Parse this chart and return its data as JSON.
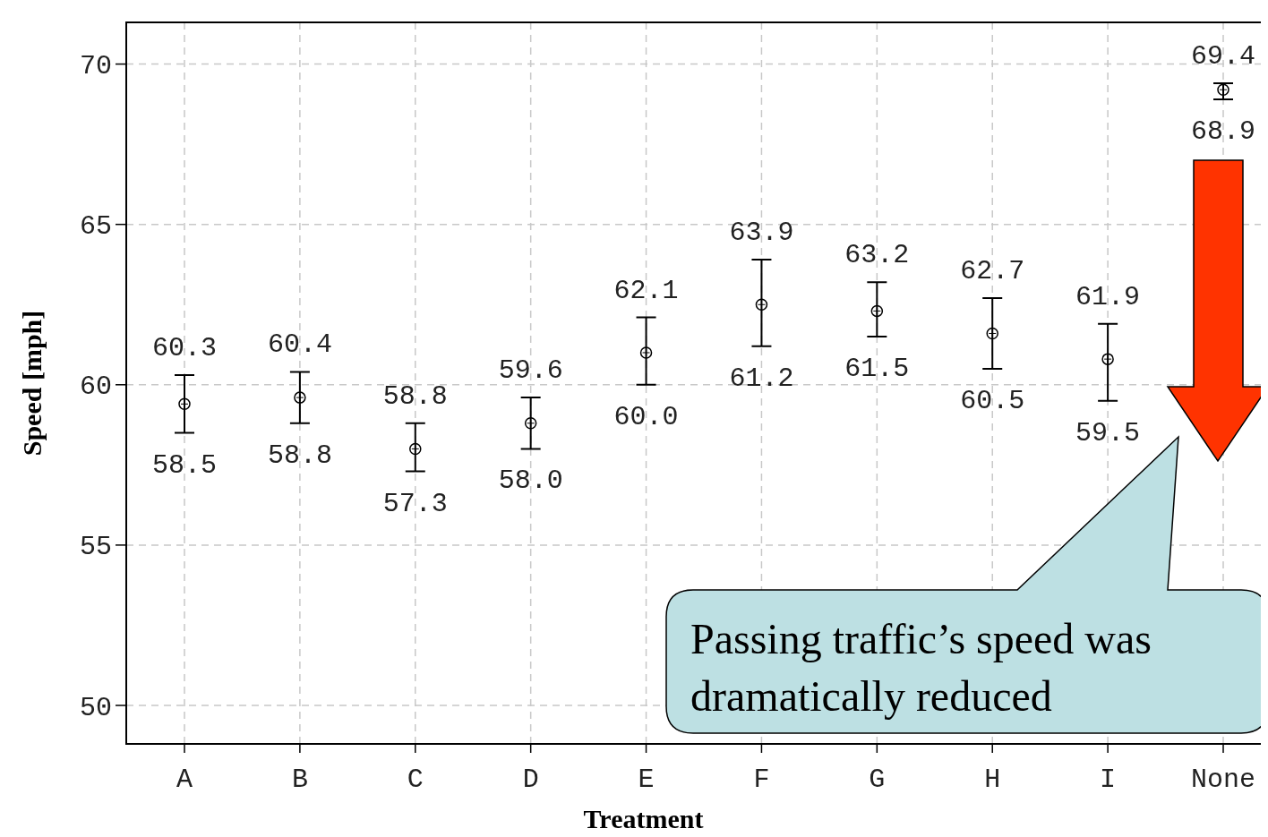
{
  "chart_data": {
    "type": "scatter",
    "xlabel": "Treatment",
    "ylabel": "Speed [mph]",
    "categories": [
      "A",
      "B",
      "C",
      "D",
      "E",
      "F",
      "G",
      "H",
      "I",
      "None"
    ],
    "series": [
      {
        "color": "#000000",
        "values": [
          59.4,
          59.6,
          58.0,
          58.8,
          61.0,
          62.5,
          62.3,
          61.6,
          60.8,
          69.2
        ],
        "errors": [
          [
            58.5,
            60.3
          ],
          [
            58.8,
            60.4
          ],
          [
            57.3,
            58.8
          ],
          [
            58.0,
            59.6
          ],
          [
            60.0,
            62.1
          ],
          [
            61.2,
            63.9
          ],
          [
            61.5,
            63.2
          ],
          [
            60.5,
            62.7
          ],
          [
            59.5,
            61.9
          ],
          [
            68.9,
            69.4
          ]
        ]
      }
    ],
    "ylim": [
      48.8,
      71.3
    ],
    "yticks": [
      50,
      55,
      60,
      65,
      70
    ],
    "grid": true,
    "marker": "circle",
    "annotations": [
      {
        "text": "60.3",
        "x": "A",
        "y": 60.3
      },
      {
        "text": "58.5",
        "x": "A",
        "y": 58.5
      },
      {
        "text": "60.4",
        "x": "B",
        "y": 60.4
      },
      {
        "text": "58.8",
        "x": "B",
        "y": 58.8
      },
      {
        "text": "58.8",
        "x": "C",
        "y": 58.8
      },
      {
        "text": "57.3",
        "x": "C",
        "y": 57.3
      },
      {
        "text": "59.6",
        "x": "D",
        "y": 59.6
      },
      {
        "text": "58.0",
        "x": "D",
        "y": 58.0
      },
      {
        "text": "62.1",
        "x": "E",
        "y": 62.1
      },
      {
        "text": "60.0",
        "x": "E",
        "y": 60.0
      },
      {
        "text": "63.9",
        "x": "F",
        "y": 63.9
      },
      {
        "text": "61.2",
        "x": "F",
        "y": 61.2
      },
      {
        "text": "63.2",
        "x": "G",
        "y": 63.2
      },
      {
        "text": "61.5",
        "x": "G",
        "y": 61.5
      },
      {
        "text": "62.7",
        "x": "H",
        "y": 62.7
      },
      {
        "text": "60.5",
        "x": "H",
        "y": 60.5
      },
      {
        "text": "61.9",
        "x": "I",
        "y": 61.9
      },
      {
        "text": "59.5",
        "x": "I",
        "y": 59.5
      },
      {
        "text": "69.4",
        "x": "None",
        "y": 69.4
      },
      {
        "text": "68.9",
        "x": "None",
        "y": 68.9
      },
      "Passing traffic’s speed was dramatically reduced"
    ]
  }
}
